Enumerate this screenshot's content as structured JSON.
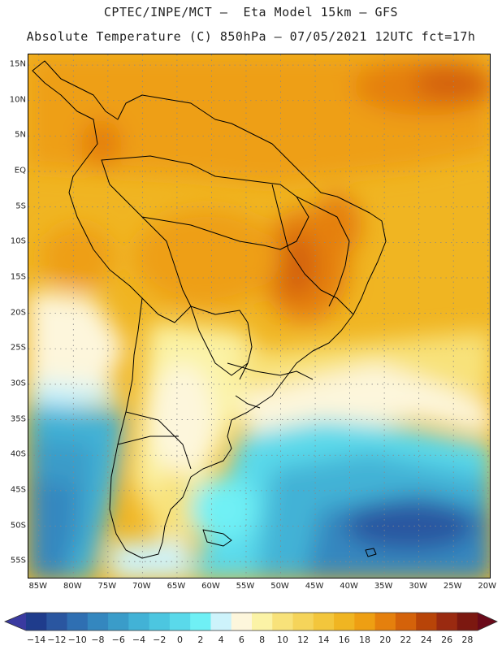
{
  "header": {
    "line1": "CPTEC/INPE/MCT –  Eta Model 15km – GFS",
    "line2": "Absolute Temperature (C) 850hPa – 07/05/2021 12UTC fct=17h"
  },
  "map": {
    "lat_labels": [
      "15N",
      "10N",
      "5N",
      "EQ",
      "5S",
      "10S",
      "15S",
      "20S",
      "25S",
      "30S",
      "35S",
      "40S",
      "45S",
      "50S",
      "55S"
    ],
    "lon_labels": [
      "85W",
      "80W",
      "75W",
      "70W",
      "65W",
      "60W",
      "55W",
      "50W",
      "45W",
      "40W",
      "35W",
      "30W",
      "25W",
      "20W"
    ],
    "lat_values": [
      15,
      10,
      5,
      0,
      -5,
      -10,
      -15,
      -20,
      -25,
      -30,
      -35,
      -40,
      -45,
      -50,
      -55
    ],
    "lon_values": [
      -85,
      -80,
      -75,
      -70,
      -65,
      -60,
      -55,
      -50,
      -45,
      -40,
      -35,
      -30,
      -25,
      -20
    ],
    "lon_range": [
      -86.5,
      -19.5
    ],
    "lat_range": [
      16.5,
      -57.5
    ]
  },
  "colorbar": {
    "labels": [
      "−14",
      "−12",
      "−10",
      "−8",
      "−6",
      "−4",
      "−2",
      "0",
      "2",
      "4",
      "6",
      "8",
      "10",
      "12",
      "14",
      "16",
      "18",
      "20",
      "22",
      "24",
      "26",
      "28"
    ],
    "under_color": "#3a3aa0",
    "over_color": "#6a0a1a",
    "colors": [
      "#1f3c8c",
      "#2a56a0",
      "#2f6fb2",
      "#3487bf",
      "#3a9cc9",
      "#42b2d6",
      "#4cc6e0",
      "#5ad9ea",
      "#6ff0f5",
      "#cdf3fb",
      "#fdf6dc",
      "#fbf3a6",
      "#f8e27a",
      "#f5d45a",
      "#f3c63c",
      "#f0b522",
      "#ee9f13",
      "#e5800d",
      "#d4620a",
      "#b84408",
      "#9a2a10",
      "#7c1810"
    ]
  }
}
